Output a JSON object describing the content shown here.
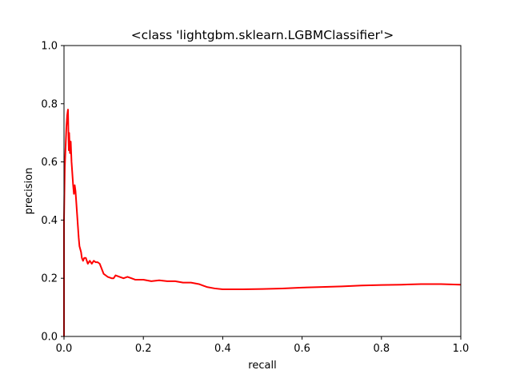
{
  "chart_data": {
    "type": "line",
    "title": "<class 'lightgbm.sklearn.LGBMClassifier'>",
    "xlabel": "recall",
    "ylabel": "precision",
    "xlim": [
      0.0,
      1.0
    ],
    "ylim": [
      0.0,
      1.0
    ],
    "xticks": [
      "0.0",
      "0.2",
      "0.4",
      "0.6",
      "0.8",
      "1.0"
    ],
    "yticks": [
      "0.0",
      "0.2",
      "0.4",
      "0.6",
      "0.8",
      "1.0"
    ],
    "grid": false,
    "legend": "none",
    "series": [
      {
        "color": "#ff0000",
        "x": [
          0.0,
          0.0,
          0.002,
          0.004,
          0.006,
          0.008,
          0.01,
          0.012,
          0.013,
          0.015,
          0.017,
          0.019,
          0.021,
          0.023,
          0.025,
          0.027,
          0.029,
          0.031,
          0.033,
          0.035,
          0.037,
          0.039,
          0.041,
          0.043,
          0.045,
          0.048,
          0.051,
          0.055,
          0.06,
          0.065,
          0.07,
          0.075,
          0.08,
          0.085,
          0.09,
          0.1,
          0.11,
          0.12,
          0.125,
          0.13,
          0.14,
          0.15,
          0.16,
          0.17,
          0.18,
          0.19,
          0.2,
          0.22,
          0.24,
          0.26,
          0.28,
          0.3,
          0.32,
          0.34,
          0.36,
          0.38,
          0.4,
          0.42,
          0.45,
          0.5,
          0.55,
          0.6,
          0.65,
          0.7,
          0.75,
          0.8,
          0.85,
          0.9,
          0.95,
          1.0
        ],
        "y": [
          0.0,
          0.4,
          0.58,
          0.65,
          0.72,
          0.76,
          0.78,
          0.64,
          0.7,
          0.63,
          0.67,
          0.6,
          0.56,
          0.52,
          0.49,
          0.52,
          0.5,
          0.46,
          0.42,
          0.38,
          0.34,
          0.31,
          0.3,
          0.29,
          0.27,
          0.26,
          0.27,
          0.27,
          0.25,
          0.26,
          0.25,
          0.26,
          0.255,
          0.255,
          0.25,
          0.215,
          0.205,
          0.2,
          0.2,
          0.21,
          0.205,
          0.2,
          0.205,
          0.2,
          0.195,
          0.195,
          0.195,
          0.19,
          0.193,
          0.19,
          0.19,
          0.185,
          0.185,
          0.18,
          0.17,
          0.165,
          0.162,
          0.162,
          0.162,
          0.163,
          0.165,
          0.168,
          0.17,
          0.172,
          0.175,
          0.177,
          0.178,
          0.18,
          0.18,
          0.178
        ]
      }
    ]
  }
}
